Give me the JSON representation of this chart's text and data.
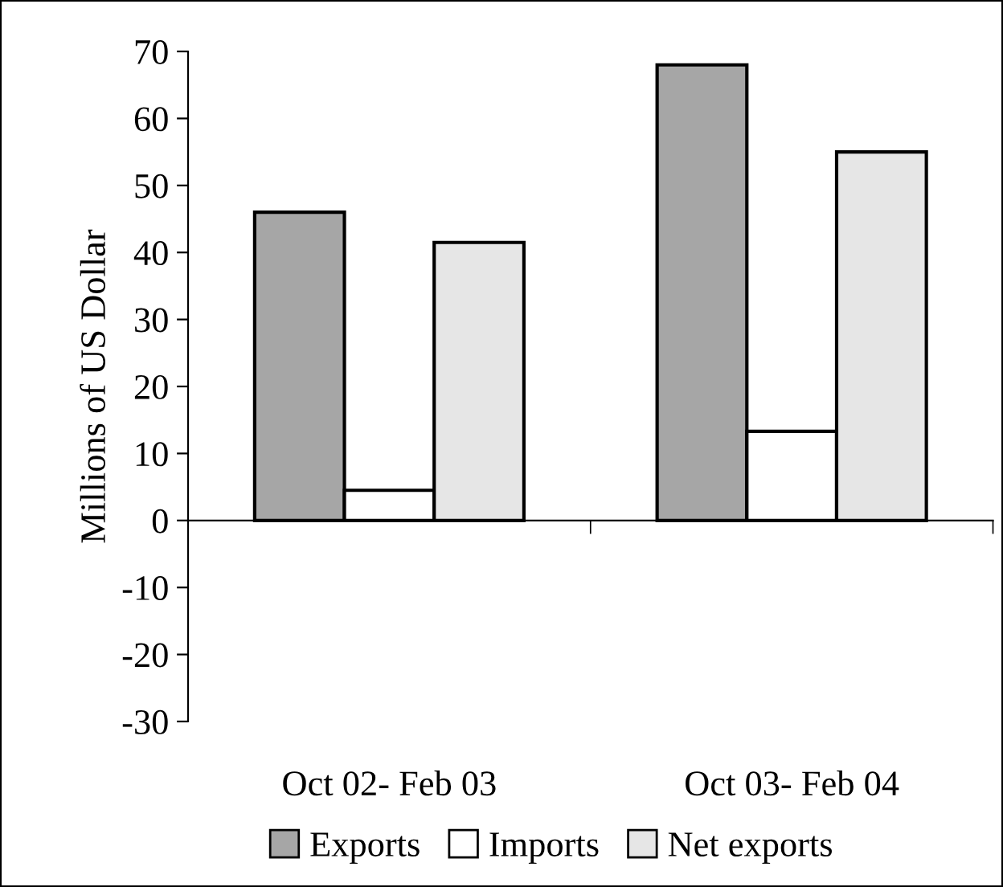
{
  "chart_data": {
    "type": "bar",
    "ylabel": "Millions of US Dollar",
    "categories": [
      "Oct 02- Feb 03",
      "Oct 03- Feb 04"
    ],
    "series": [
      {
        "name": "Exports",
        "color": "#a6a6a6",
        "values": [
          46,
          68
        ]
      },
      {
        "name": "Imports",
        "color": "#ffffff",
        "values": [
          4.5,
          13.3
        ]
      },
      {
        "name": "Net exports",
        "color": "#e6e6e6",
        "values": [
          41.5,
          55
        ]
      }
    ],
    "ylim": [
      -30,
      70
    ],
    "yticks": [
      -30,
      -20,
      -10,
      0,
      10,
      20,
      30,
      40,
      50,
      60,
      70
    ],
    "legend": "bottom"
  }
}
